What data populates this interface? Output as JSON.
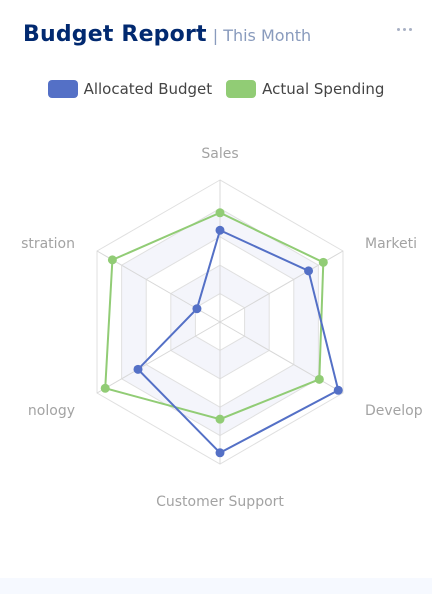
{
  "header": {
    "title": "Budget Report",
    "subtitle": "| This Month",
    "more_icon": "ellipsis-icon"
  },
  "colors": {
    "allocated": "#5470c6",
    "actual": "#91cc75",
    "title": "#012970",
    "subtitle": "#899bbd"
  },
  "legend": {
    "items": [
      {
        "label": "Allocated Budget",
        "color": "#5470c6"
      },
      {
        "label": "Actual Spending",
        "color": "#91cc75"
      }
    ]
  },
  "chart_data": {
    "type": "radar",
    "indicators": [
      {
        "name": "Sales",
        "max": 6500
      },
      {
        "name": "Administration",
        "max": 16000
      },
      {
        "name": "Information Technology",
        "max": 30000
      },
      {
        "name": "Customer Support",
        "max": 38000
      },
      {
        "name": "Development",
        "max": 52000
      },
      {
        "name": "Marketing",
        "max": 25000
      }
    ],
    "visible_labels": [
      "Sales",
      "stration",
      "nology",
      "Customer Support",
      "Develop",
      "Marketi"
    ],
    "series": [
      {
        "name": "Allocated Budget",
        "values": [
          4200,
          3000,
          20000,
          35000,
          50000,
          18000
        ]
      },
      {
        "name": "Actual Spending",
        "values": [
          5000,
          14000,
          28000,
          26000,
          42000,
          21000
        ]
      }
    ]
  }
}
